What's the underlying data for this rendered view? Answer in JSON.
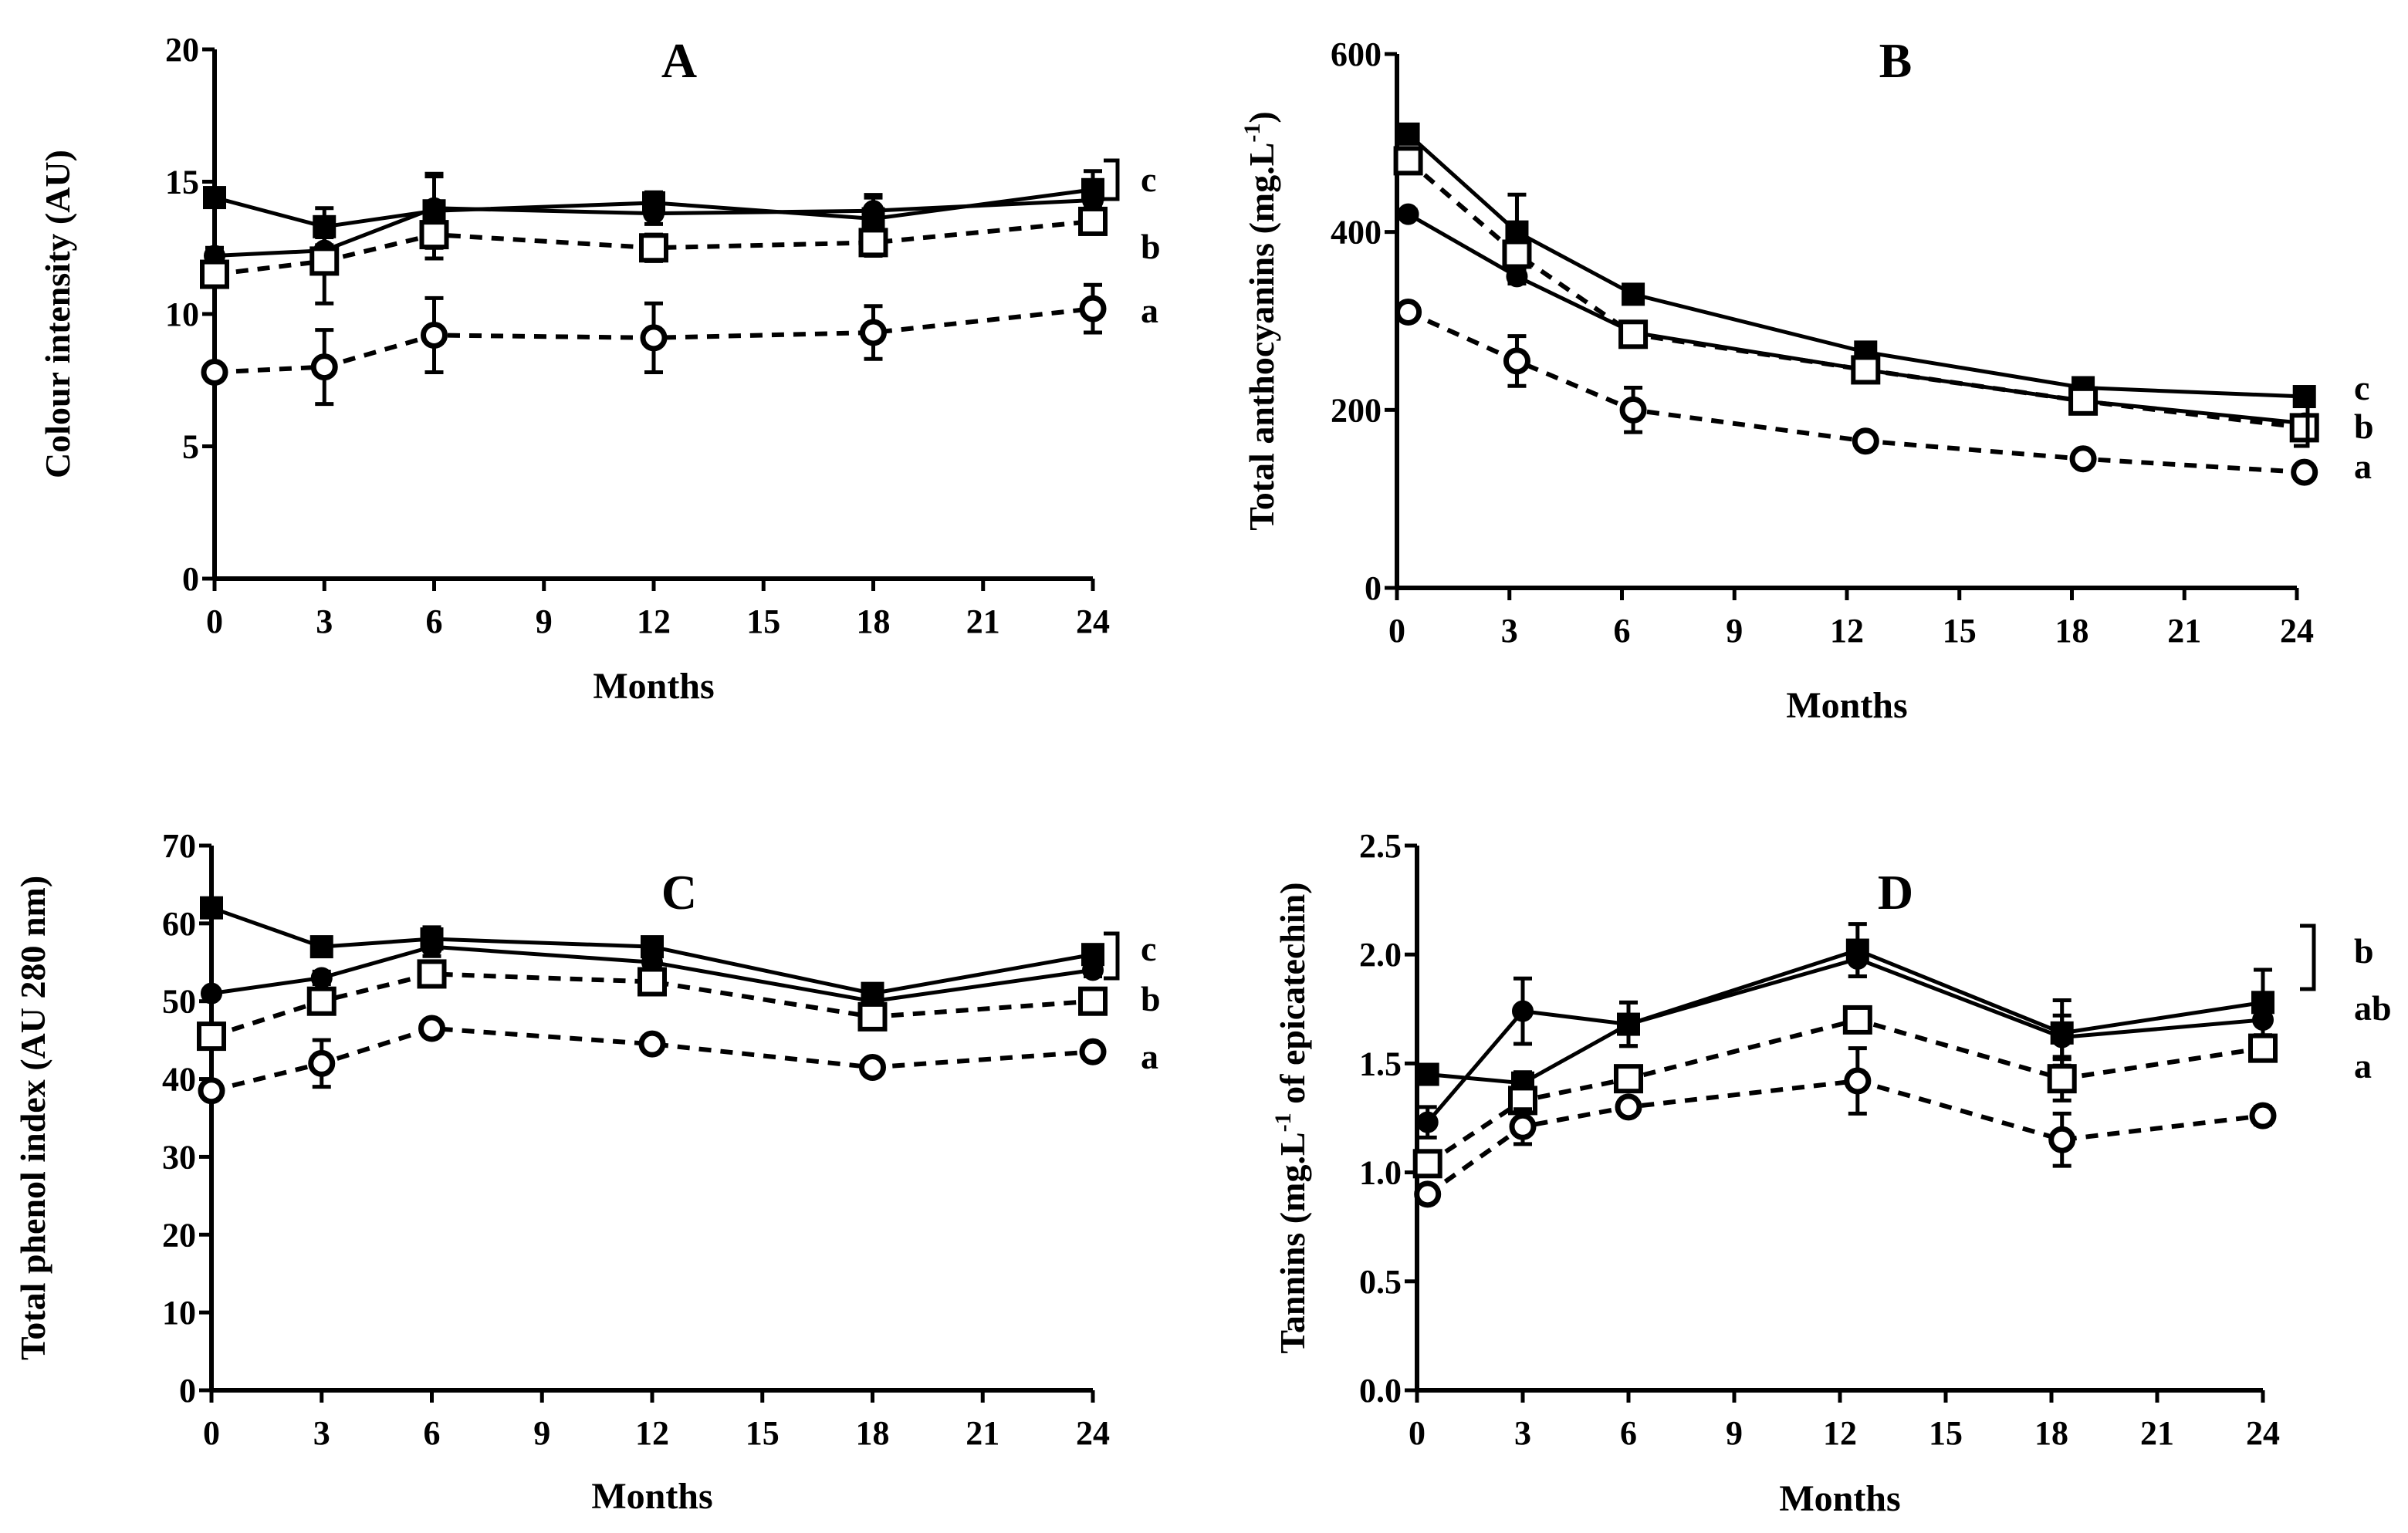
{
  "chart_data": [
    {
      "type": "line",
      "title": "A",
      "xlabel": "Months",
      "ylabel": "Colour intensity (AU)",
      "xlim": [
        0,
        24
      ],
      "ylim": [
        0,
        20
      ],
      "xticks": [
        0,
        3,
        6,
        9,
        12,
        15,
        18,
        21,
        24
      ],
      "yticks": [
        0,
        5,
        10,
        15,
        20
      ],
      "x": [
        0,
        3,
        6,
        12,
        18,
        24
      ],
      "series": [
        {
          "name": "filled-square",
          "marker": "square",
          "filled": true,
          "dashed": false,
          "values": [
            14.4,
            13.3,
            13.9,
            14.2,
            13.6,
            14.7
          ],
          "errors": [
            0.3,
            0.7,
            1.4,
            0.4,
            0.8,
            0.7
          ]
        },
        {
          "name": "filled-circle",
          "marker": "circle",
          "filled": true,
          "dashed": false,
          "values": [
            12.2,
            12.4,
            14.0,
            13.8,
            13.9,
            14.3
          ],
          "errors": [
            0.3,
            0.5,
            1.2,
            0.4,
            0.6,
            0.5
          ]
        },
        {
          "name": "open-square",
          "marker": "square",
          "filled": false,
          "dashed": true,
          "values": [
            11.5,
            12.0,
            13.0,
            12.5,
            12.7,
            13.5
          ],
          "errors": [
            0.3,
            1.6,
            0.9,
            0.5,
            0.5,
            0.3
          ]
        },
        {
          "name": "open-circle",
          "marker": "circle",
          "filled": false,
          "dashed": true,
          "values": [
            7.8,
            8.0,
            9.2,
            9.1,
            9.3,
            10.2
          ],
          "errors": [
            0.2,
            1.4,
            1.4,
            1.3,
            1.0,
            0.9
          ]
        }
      ],
      "group_letters": [
        "c",
        "b",
        "a"
      ]
    },
    {
      "type": "line",
      "title": "B",
      "xlabel": "Months",
      "ylabel": "Total anthocyanins (mg.L",
      "ylabel_sup": "-1",
      "ylabel_end": ")",
      "xlim": [
        0,
        24
      ],
      "ylim": [
        0,
        600
      ],
      "xticks": [
        0,
        3,
        6,
        9,
        12,
        15,
        18,
        21,
        24
      ],
      "yticks": [
        0,
        200,
        400,
        600
      ],
      "x": [
        0.3,
        3.2,
        6.3,
        12.5,
        18.3,
        24.2
      ],
      "series": [
        {
          "name": "filled-square",
          "marker": "square",
          "filled": true,
          "dashed": false,
          "values": [
            510,
            400,
            330,
            265,
            225,
            215
          ],
          "errors": [
            5,
            42,
            8,
            6,
            6,
            8
          ]
        },
        {
          "name": "filled-circle",
          "marker": "circle",
          "filled": true,
          "dashed": false,
          "values": [
            420,
            350,
            287,
            245,
            210,
            185
          ],
          "errors": [
            5,
            8,
            6,
            5,
            5,
            5
          ]
        },
        {
          "name": "open-square",
          "marker": "square",
          "filled": false,
          "dashed": true,
          "values": [
            480,
            375,
            285,
            245,
            210,
            180
          ],
          "errors": [
            8,
            10,
            6,
            6,
            5,
            5
          ]
        },
        {
          "name": "open-circle",
          "marker": "circle",
          "filled": false,
          "dashed": true,
          "values": [
            310,
            255,
            200,
            165,
            145,
            130
          ],
          "errors": [
            4,
            28,
            25,
            4,
            4,
            4
          ]
        }
      ],
      "group_letters": [
        "c",
        "b",
        "a"
      ]
    },
    {
      "type": "line",
      "title": "C",
      "xlabel": "Months",
      "ylabel": "Total phenol index (AU 280 nm)",
      "xlim": [
        0,
        24
      ],
      "ylim": [
        0,
        70
      ],
      "xticks": [
        0,
        3,
        6,
        9,
        12,
        15,
        18,
        21,
        24
      ],
      "yticks": [
        0,
        10,
        20,
        30,
        40,
        50,
        60,
        70
      ],
      "x": [
        0,
        3,
        6,
        12,
        18,
        24
      ],
      "series": [
        {
          "name": "filled-square",
          "marker": "square",
          "filled": true,
          "dashed": false,
          "values": [
            62,
            57,
            58,
            57,
            51,
            56
          ],
          "errors": [
            0.8,
            0.8,
            1.5,
            0.8,
            0.8,
            0.8
          ]
        },
        {
          "name": "filled-circle",
          "marker": "circle",
          "filled": true,
          "dashed": false,
          "values": [
            51,
            53,
            57,
            55,
            50,
            54
          ],
          "errors": [
            0.5,
            0.8,
            1.2,
            0.8,
            0.8,
            0.8
          ]
        },
        {
          "name": "open-square",
          "marker": "square",
          "filled": false,
          "dashed": true,
          "values": [
            45.5,
            50,
            53.5,
            52.5,
            48,
            50
          ],
          "errors": [
            0.8,
            0.8,
            0.8,
            0.8,
            0.8,
            0.8
          ]
        },
        {
          "name": "open-circle",
          "marker": "circle",
          "filled": false,
          "dashed": true,
          "values": [
            38.5,
            42,
            46.5,
            44.5,
            41.5,
            43.5
          ],
          "errors": [
            0.5,
            3.0,
            0.5,
            0.5,
            0.5,
            0.5
          ]
        }
      ],
      "group_letters": [
        "c",
        "b",
        "a"
      ]
    },
    {
      "type": "line",
      "title": "D",
      "xlabel": "Months",
      "ylabel": "Tannins (mg.L",
      "ylabel_sup": "-1",
      "ylabel_end": " of epicatechin)",
      "xlim": [
        0,
        24
      ],
      "ylim": [
        0,
        2.5
      ],
      "xticks": [
        0,
        3,
        6,
        9,
        12,
        15,
        18,
        21,
        24
      ],
      "yticks": [
        "0.0",
        "0.5",
        "1.0",
        "1.5",
        "2.0",
        "2.5"
      ],
      "x": [
        0.3,
        3,
        6,
        12.5,
        18.3,
        24
      ],
      "series": [
        {
          "name": "filled-square",
          "marker": "square",
          "filled": true,
          "dashed": false,
          "values": [
            1.45,
            1.41,
            1.68,
            2.02,
            1.64,
            1.78
          ],
          "errors": [
            0.03,
            0.05,
            0.1,
            0.12,
            0.15,
            0.15
          ]
        },
        {
          "name": "filled-circle",
          "marker": "circle",
          "filled": true,
          "dashed": false,
          "values": [
            1.23,
            1.74,
            1.68,
            1.98,
            1.62,
            1.7
          ],
          "errors": [
            0.07,
            0.15,
            0.1,
            0.08,
            0.1,
            0.1
          ]
        },
        {
          "name": "open-square",
          "marker": "square",
          "filled": false,
          "dashed": true,
          "values": [
            1.04,
            1.33,
            1.43,
            1.7,
            1.43,
            1.57
          ],
          "errors": [
            0.03,
            0.05,
            0.03,
            0.03,
            0.1,
            0.04
          ]
        },
        {
          "name": "open-circle",
          "marker": "circle",
          "filled": false,
          "dashed": true,
          "values": [
            0.9,
            1.21,
            1.3,
            1.42,
            1.15,
            1.26
          ],
          "errors": [
            0.02,
            0.08,
            0.03,
            0.15,
            0.12,
            0.04
          ]
        }
      ],
      "group_letters": [
        "b",
        "ab",
        "a"
      ]
    }
  ]
}
